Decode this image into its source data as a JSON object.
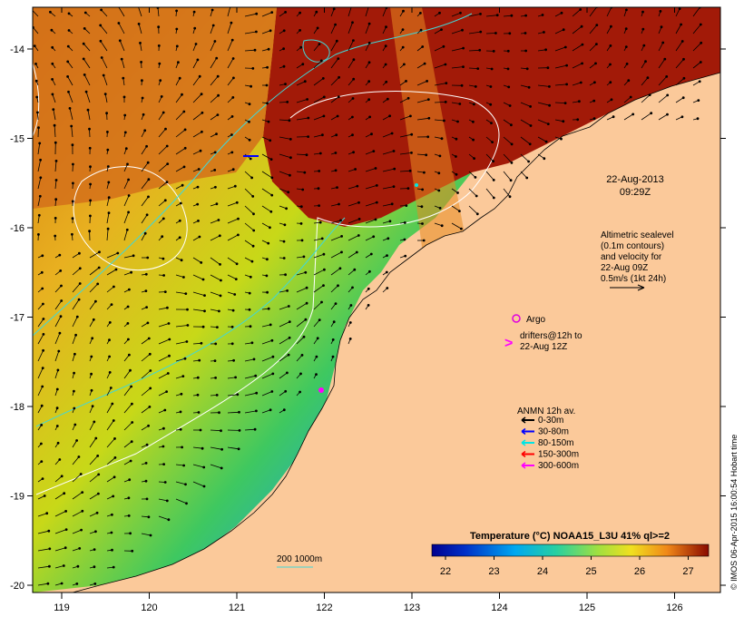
{
  "map": {
    "lon_ticks": [
      "119",
      "120",
      "121",
      "122",
      "123",
      "124",
      "125",
      "126"
    ],
    "lat_ticks": [
      "-14",
      "-15",
      "-16",
      "-17",
      "-18",
      "-19",
      "-20"
    ],
    "datetime": "22-Aug-2013",
    "time": "09:29Z",
    "altimetry_lines": [
      "Altimetric sealevel",
      "(0.1m contours)",
      "and velocity for",
      "22-Aug 09Z",
      "0.5m/s (1kt 24h)"
    ],
    "argo_label": "Argo",
    "drifters_lines": [
      "drifters@12h to",
      "22-Aug 12Z"
    ],
    "anmn_title": "ANMN 12h av.",
    "anmn_legend": [
      {
        "label": "0-30m",
        "color": "#000000"
      },
      {
        "label": "30-80m",
        "color": "#0000ff"
      },
      {
        "label": "80-150m",
        "color": "#00e5e5"
      },
      {
        "label": "150-300m",
        "color": "#ff0000"
      },
      {
        "label": "300-600m",
        "color": "#ff00ff"
      }
    ],
    "bathy_label": "200  1000m",
    "colorbar_title": "Temperature (°C) NOAA15_L3U 41% ql>=2",
    "colorbar_ticks": [
      "22",
      "23",
      "24",
      "25",
      "26",
      "27"
    ],
    "credit": "© IMOS 06-Apr-2015 16:00:54 Hobart time",
    "colors": {
      "land": "#fbc99a",
      "argo": "#e000e0",
      "drifter": "#ff00ff",
      "contour_200": "#40d8d8",
      "sealevel": "#ffffff"
    }
  }
}
